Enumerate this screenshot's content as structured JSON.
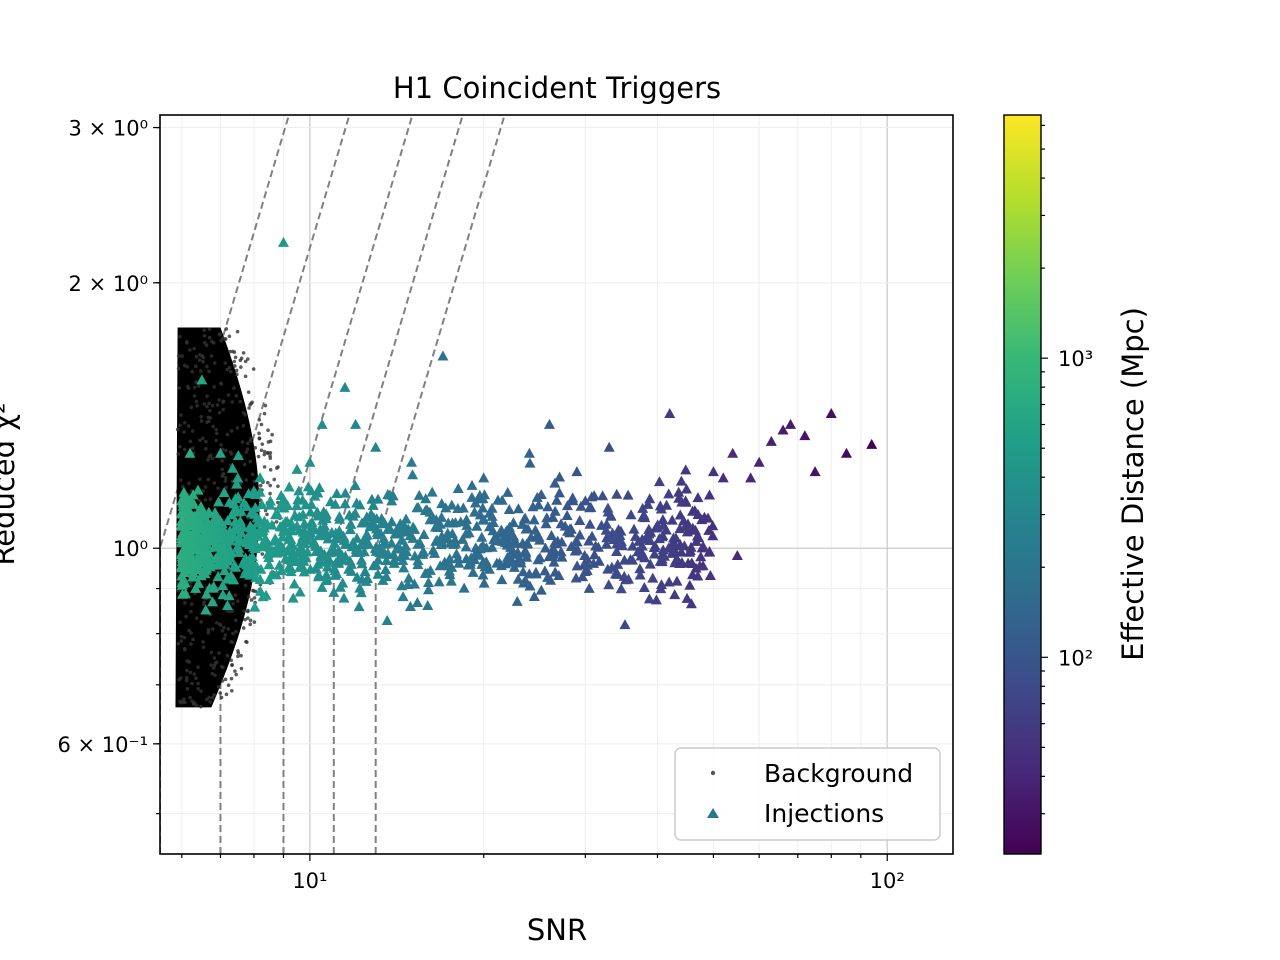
{
  "chart_data": {
    "type": "scatter",
    "title": "H1 Coincident Triggers",
    "xlabel": "SNR",
    "ylabel": "Reduced χ²",
    "x_scale": "log",
    "y_scale": "log",
    "xlim": [
      5.5,
      130
    ],
    "ylim": [
      0.45,
      3.1
    ],
    "x_ticks": [
      {
        "value": 10,
        "label": "10¹"
      },
      {
        "value": 100,
        "label": "10²"
      }
    ],
    "y_ticks": [
      {
        "value": 0.6,
        "label": "6 × 10⁻¹"
      },
      {
        "value": 1.0,
        "label": "10⁰"
      },
      {
        "value": 2.0,
        "label": "2 × 10⁰"
      },
      {
        "value": 3.0,
        "label": "3 × 10⁰"
      }
    ],
    "grid": true,
    "legend_position": "lower-right",
    "series": [
      {
        "name": "Background",
        "marker": "dot",
        "color": "#000000",
        "description_range": {
          "snr": [
            5.8,
            8.4
          ],
          "chisq": [
            0.66,
            1.78
          ]
        }
      },
      {
        "name": "Injections",
        "marker": "triangle",
        "color": "#2a788e",
        "points": [
          [
            6.0,
            1.06
          ],
          [
            6.1,
            0.95
          ],
          [
            6.3,
            1.12
          ],
          [
            6.5,
            1.01
          ],
          [
            6.7,
            0.9
          ],
          [
            6.9,
            1.08
          ],
          [
            7.1,
            1.0
          ],
          [
            7.3,
            0.93
          ],
          [
            7.6,
            1.1
          ],
          [
            7.9,
            0.97
          ],
          [
            8.2,
            1.04
          ],
          [
            8.5,
            0.92
          ],
          [
            8.8,
            1.09
          ],
          [
            9.2,
            1.0
          ],
          [
            9.6,
            0.95
          ],
          [
            10.1,
            1.06
          ],
          [
            10.6,
            0.98
          ],
          [
            11.2,
            1.03
          ],
          [
            11.8,
            0.94
          ],
          [
            12.5,
            1.07
          ],
          [
            13.2,
            1.0
          ],
          [
            14.0,
            0.96
          ],
          [
            14.8,
            1.05
          ],
          [
            15.7,
            0.99
          ],
          [
            16.6,
            1.02
          ],
          [
            17.6,
            0.95
          ],
          [
            18.7,
            1.06
          ],
          [
            19.8,
            1.0
          ],
          [
            21.0,
            1.03
          ],
          [
            22.3,
            0.97
          ],
          [
            23.6,
            1.08
          ],
          [
            25.0,
            1.02
          ],
          [
            26.6,
            1.1
          ],
          [
            28.2,
            1.04
          ],
          [
            30.0,
            1.13
          ],
          [
            32.0,
            1.06
          ],
          [
            34.0,
            1.15
          ],
          [
            36.0,
            1.09
          ],
          [
            38.5,
            1.12
          ],
          [
            41.0,
            1.06
          ],
          [
            44.0,
            1.19
          ],
          [
            47.0,
            1.14
          ],
          [
            50.0,
            1.22
          ],
          [
            54.0,
            1.28
          ],
          [
            58.0,
            1.2
          ],
          [
            63.0,
            1.32
          ],
          [
            68.0,
            1.38
          ],
          [
            72.0,
            1.34
          ],
          [
            80.0,
            1.42
          ],
          [
            94.0,
            1.31
          ],
          [
            9.0,
            2.22
          ],
          [
            11.5,
            1.52
          ],
          [
            17.0,
            1.65
          ],
          [
            12.0,
            1.38
          ],
          [
            10.5,
            1.38
          ],
          [
            26.0,
            1.38
          ],
          [
            42.0,
            1.42
          ],
          [
            6.5,
            1.55
          ],
          [
            7.0,
            1.28
          ],
          [
            6.2,
            1.28
          ],
          [
            7.5,
            1.2
          ],
          [
            8.0,
            1.16
          ],
          [
            10.0,
            1.25
          ],
          [
            13.0,
            1.3
          ],
          [
            15.0,
            1.25
          ],
          [
            20.0,
            1.2
          ],
          [
            24.0,
            1.28
          ],
          [
            29.0,
            1.22
          ],
          [
            33.0,
            1.3
          ],
          [
            55.0,
            0.98
          ],
          [
            16.0,
            0.86
          ],
          [
            14.5,
            0.88
          ],
          [
            12.2,
            0.9
          ],
          [
            11.0,
            0.89
          ],
          [
            9.4,
            0.91
          ],
          [
            8.3,
            0.88
          ],
          [
            7.2,
            0.86
          ],
          [
            6.6,
            0.85
          ],
          [
            6.8,
            0.9
          ],
          [
            18.5,
            0.9
          ],
          [
            21.5,
            0.92
          ],
          [
            27.0,
            0.93
          ],
          [
            31.0,
            0.96
          ],
          [
            37.0,
            0.99
          ],
          [
            46.0,
            1.1
          ],
          [
            52.0,
            1.2
          ],
          [
            60.0,
            1.25
          ],
          [
            66.0,
            1.36
          ],
          [
            75.0,
            1.22
          ],
          [
            85.0,
            1.28
          ]
        ]
      }
    ],
    "colorbar": {
      "label": "Effective Distance (Mpc)",
      "scale": "log",
      "range": [
        22,
        6500
      ],
      "ticks": [
        {
          "value": 100,
          "label": "10²"
        },
        {
          "value": 1000,
          "label": "10³"
        }
      ],
      "colormap": [
        "#440154",
        "#482878",
        "#3e4989",
        "#31688e",
        "#26828e",
        "#1f9e89",
        "#35b779",
        "#6ece58",
        "#b5de2b",
        "#fde725"
      ]
    },
    "threshold_curves": [
      {
        "snr_min": 5.5,
        "chisq_at_min": 1.0
      },
      {
        "snr_min": 7.0,
        "chisq_at_min": 1.0
      },
      {
        "snr_min": 9.0,
        "chisq_at_min": 1.0
      },
      {
        "snr_min": 11.0,
        "chisq_at_min": 1.0
      },
      {
        "snr_min": 13.0,
        "chisq_at_min": 1.0
      }
    ]
  }
}
